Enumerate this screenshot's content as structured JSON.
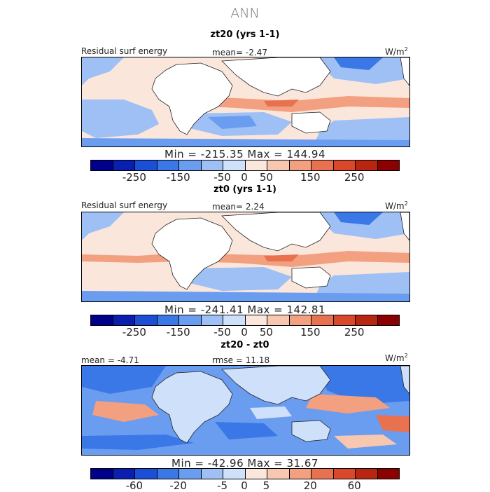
{
  "figure_title": "ANN",
  "units_base": "W/m",
  "units_exp": "2",
  "panels": [
    {
      "title": "zt20 (yrs 1-1)",
      "left_label": "Residual surf energy",
      "mid_label": "mean=   -2.47",
      "minmax": "Min = -215.35 Max = 144.94",
      "ticks": [
        "-250",
        "-150",
        "-50",
        "0",
        "50",
        "150",
        "250"
      ]
    },
    {
      "title": "zt0 (yrs 1-1)",
      "left_label": "Residual surf energy",
      "mid_label": "mean=    2.24",
      "minmax": "Min = -241.41 Max = 142.81",
      "ticks": [
        "-250",
        "-150",
        "-50",
        "0",
        "50",
        "150",
        "250"
      ]
    },
    {
      "title": "zt20 - zt0",
      "left_label": "mean =   -4.71",
      "mid_label": "rmse =   11.18",
      "minmax": "Min = -42.96 Max =  31.67",
      "ticks": [
        "-60",
        "-20",
        "-5",
        "0",
        "5",
        "20",
        "60"
      ]
    }
  ],
  "colors": {
    "scale": [
      "#00008b",
      "#0a1fb0",
      "#1a4fd6",
      "#3a78e8",
      "#6a9cf0",
      "#9ec0f5",
      "#cfe0fa",
      "#fbe6dc",
      "#f8c7b0",
      "#f2a080",
      "#e8724f",
      "#d9482a",
      "#b82510",
      "#8b0000"
    ],
    "ocean_warm": "#f8c7b0",
    "ocean_light": "#fbe6dc",
    "ocean_blue": "#9ec0f5",
    "ocean_deepblue": "#3a78e8",
    "land": "#ffffff"
  }
}
